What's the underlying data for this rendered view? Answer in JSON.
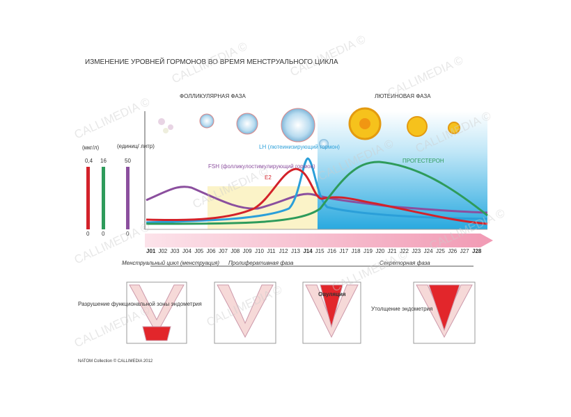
{
  "title": "ИЗМЕНЕНИЕ УРОВНЕЙ ГОРМОНОВ ВО ВРЕМЯ МЕНСТРУАЛЬНОГО ЦИКЛА",
  "phases": {
    "follicular": "ФОЛЛИКУЛЯРНАЯ ФАЗА",
    "luteal": "ЛЮТЕИНОВАЯ ФАЗА"
  },
  "scales": {
    "units": [
      "(мкг/л)",
      "(единиц/ литр)"
    ],
    "top": [
      "0,4",
      "16",
      "50"
    ],
    "bottom": [
      "0",
      "0",
      "0"
    ]
  },
  "hormones": {
    "fsh": "FSH (фолликулостимулирующий гормон)",
    "lh": "LH (лютеинизирующий гормон)",
    "e2": "E2",
    "progesterone": "ПРОГЕСТЕРОН"
  },
  "days": [
    "J01",
    "J02",
    "J03",
    "J04",
    "J05",
    "J06",
    "J07",
    "J08",
    "J09",
    "J10",
    "J11",
    "J12",
    "J13",
    "J14",
    "J15",
    "J16",
    "J17",
    "J18",
    "J19",
    "J20",
    "J21",
    "J22",
    "J23",
    "J24",
    "J25",
    "J26",
    "J27",
    "J28"
  ],
  "cycle_phases": [
    "Менструальный цикл (менструация)",
    "Пролиферативная фаза",
    "Секреторная фаза"
  ],
  "annotations": {
    "destruction": "Разрушение функциональной зоны эндометрия",
    "ovulation": "Овуляция",
    "thickening": "Утолщение эндометрия"
  },
  "watermark": "CALLIMEDIA ©",
  "footer": "NATOM Collection © CALLIMEDIA 2012"
}
